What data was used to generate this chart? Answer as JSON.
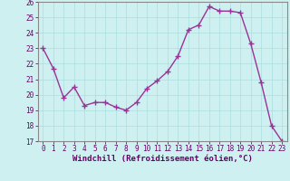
{
  "x": [
    0,
    1,
    2,
    3,
    4,
    5,
    6,
    7,
    8,
    9,
    10,
    11,
    12,
    13,
    14,
    15,
    16,
    17,
    18,
    19,
    20,
    21,
    22,
    23
  ],
  "y": [
    23.0,
    21.7,
    19.8,
    20.5,
    19.3,
    19.5,
    19.5,
    19.2,
    19.0,
    19.5,
    20.4,
    20.9,
    21.5,
    22.5,
    24.2,
    24.5,
    25.7,
    25.4,
    25.4,
    25.3,
    23.3,
    20.8,
    18.0,
    17.0
  ],
  "line_color": "#993399",
  "marker": "+",
  "marker_size": 4,
  "bg_color": "#cff0f0",
  "grid_color": "#aadddd",
  "xlabel": "Windchill (Refroidissement éolien,°C)",
  "ylim": [
    17,
    26
  ],
  "xlim_min": -0.5,
  "xlim_max": 23.5,
  "yticks": [
    17,
    18,
    19,
    20,
    21,
    22,
    23,
    24,
    25,
    26
  ],
  "xticks": [
    0,
    1,
    2,
    3,
    4,
    5,
    6,
    7,
    8,
    9,
    10,
    11,
    12,
    13,
    14,
    15,
    16,
    17,
    18,
    19,
    20,
    21,
    22,
    23
  ],
  "tick_label_fontsize": 5.5,
  "xlabel_fontsize": 6.5,
  "line_width": 1.0,
  "spine_color": "#7777aa",
  "border_color": "#888888"
}
